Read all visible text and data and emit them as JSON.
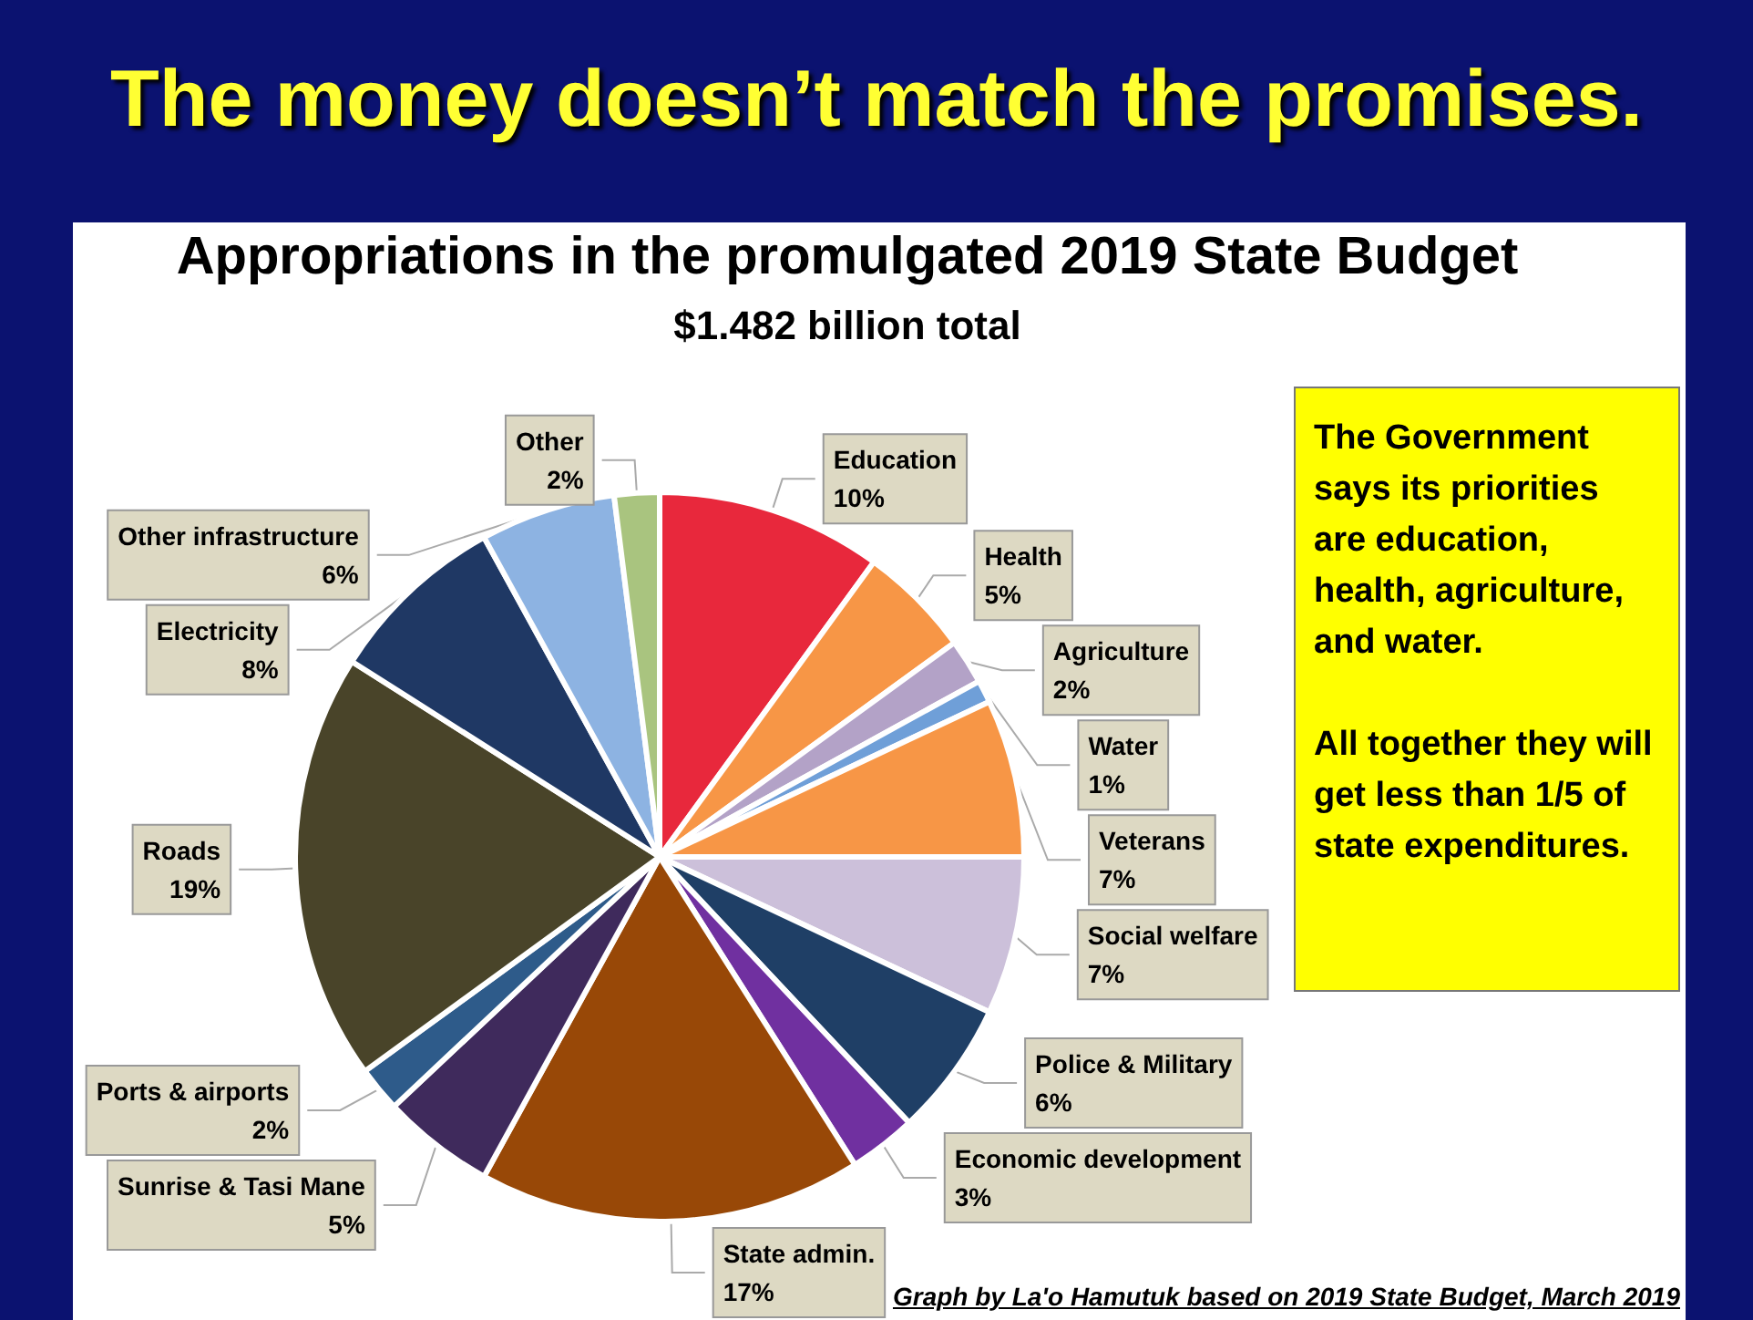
{
  "chart_data": {
    "type": "pie",
    "title": "The money doesn’t match the promises.",
    "subtitle": "Appropriations in the promulgated 2019 State Budget",
    "annotations": [
      "$1.482 billion total",
      "The Government says its priorities are education, health, agriculture, and water.\n\nAll together they will get less than 1/5 of state expenditures.",
      "Graph by La'o Hamutuk based on 2019 State Budget, March 2019"
    ],
    "categories": [
      "Education",
      "Health",
      "Agriculture",
      "Water",
      "Veterans",
      "Social welfare",
      "Police & Military",
      "Economic development",
      "State admin.",
      "Sunrise & Tasi Mane",
      "Ports & airports",
      "Roads",
      "Electricity",
      "Other infrastructure",
      "Other"
    ],
    "values": [
      10,
      5,
      2,
      1,
      7,
      7,
      6,
      3,
      17,
      5,
      2,
      19,
      8,
      6,
      2
    ],
    "colors": [
      "#e8283c",
      "#f79646",
      "#b3a2c7",
      "#6f9fd8",
      "#f79646",
      "#ccc0da",
      "#1f3f66",
      "#7030a0",
      "#984807",
      "#3f2a5c",
      "#2e5b8a",
      "#494429",
      "#1f3864",
      "#8db3e2",
      "#a9c47f"
    ],
    "value_labels": [
      "10%",
      "5%",
      "2%",
      "1%",
      "7%",
      "7%",
      "6%",
      "3%",
      "17%",
      "5%",
      "2%",
      "19%",
      "8%",
      "6%",
      "2%"
    ],
    "legend": false
  }
}
